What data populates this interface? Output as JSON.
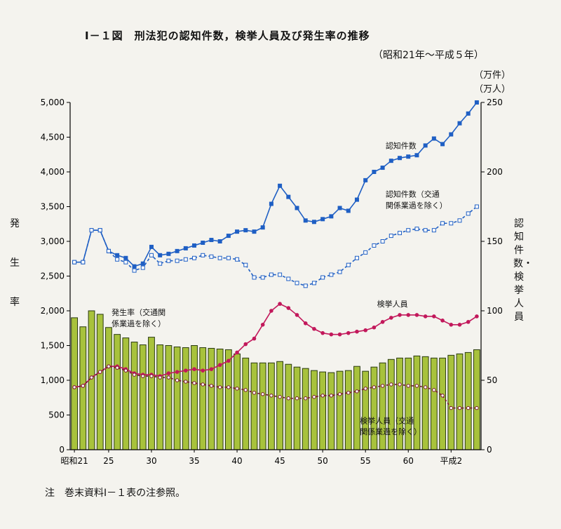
{
  "title": "Ⅰ－１図　刑法犯の認知件数，検挙人員及び発生率の推移",
  "subtitle": "（昭和21年～平成５年）",
  "note": "注　巻末資料Ⅰ－１表の注参照。",
  "left_axis_label": "発生率",
  "right_axis_label": "認知件数・検挙人員",
  "right_axis_unit_1": "（万件）",
  "right_axis_unit_2": "（万人）",
  "colors": {
    "blue": "#1f5fc4",
    "magenta": "#c2185b",
    "bar": "#a8c23c",
    "dark": "#7a1030"
  },
  "chart_data": {
    "type": "bar",
    "x": [
      21,
      22,
      23,
      24,
      25,
      26,
      27,
      28,
      29,
      30,
      31,
      32,
      33,
      34,
      35,
      36,
      37,
      38,
      39,
      40,
      41,
      42,
      43,
      44,
      45,
      46,
      47,
      48,
      49,
      50,
      51,
      52,
      53,
      54,
      55,
      56,
      57,
      58,
      59,
      60,
      61,
      62,
      63,
      64,
      65,
      66,
      67,
      68
    ],
    "x_tick_labels": [
      {
        "x": 21,
        "label": "昭和21"
      },
      {
        "x": 25,
        "label": "25"
      },
      {
        "x": 30,
        "label": "30"
      },
      {
        "x": 35,
        "label": "35"
      },
      {
        "x": 40,
        "label": "40"
      },
      {
        "x": 45,
        "label": "45"
      },
      {
        "x": 50,
        "label": "50"
      },
      {
        "x": 55,
        "label": "55"
      },
      {
        "x": 60,
        "label": "60"
      },
      {
        "x": 65,
        "label": "平成2"
      }
    ],
    "left_axis": {
      "ylim": [
        0,
        5000
      ],
      "ticks": [
        "0",
        "500",
        "1,000",
        "1,500",
        "2,000",
        "2,500",
        "3,000",
        "3,500",
        "4,000",
        "4,500",
        "5,000"
      ]
    },
    "right_axis": {
      "ylim": [
        0,
        250
      ],
      "ticks": [
        "0",
        "50",
        "100",
        "150",
        "200",
        "250"
      ]
    },
    "series": [
      {
        "name": "発生率（交通関係業過を除く）",
        "type": "bar",
        "axis": "left",
        "values": [
          1900,
          1770,
          2000,
          1950,
          1760,
          1660,
          1610,
          1550,
          1510,
          1620,
          1510,
          1500,
          1480,
          1470,
          1500,
          1470,
          1460,
          1450,
          1440,
          1380,
          1320,
          1250,
          1250,
          1250,
          1270,
          1230,
          1190,
          1170,
          1140,
          1120,
          1110,
          1130,
          1140,
          1200,
          1130,
          1190,
          1250,
          1300,
          1320,
          1320,
          1350,
          1340,
          1320,
          1320,
          1360,
          1380,
          1400,
          1440
        ]
      },
      {
        "name": "認知件数",
        "type": "line",
        "axis": "right",
        "marker": "filled-square",
        "values": [
          135,
          135,
          158,
          158,
          143,
          140,
          138,
          132,
          134,
          146,
          140,
          141,
          143,
          145,
          147,
          149,
          151,
          150,
          154,
          157,
          158,
          157,
          160,
          177,
          190,
          182,
          174,
          165,
          164,
          166,
          168,
          174,
          172,
          180,
          194,
          200,
          203,
          208,
          210,
          211,
          212,
          219,
          224,
          220,
          227,
          235,
          242,
          250
        ]
      },
      {
        "name": "認知件数（交通関係業過を除く）",
        "type": "line",
        "axis": "right",
        "marker": "hollow-square",
        "values": [
          135,
          135,
          158,
          158,
          143,
          137,
          135,
          129,
          131,
          140,
          134,
          136,
          136,
          137,
          138,
          140,
          139,
          138,
          138,
          137,
          133,
          124,
          124,
          126,
          126,
          123,
          120,
          118,
          120,
          124,
          126,
          128,
          133,
          138,
          142,
          147,
          150,
          154,
          156,
          158,
          159,
          158,
          158,
          163,
          163,
          165,
          170,
          175
        ]
      },
      {
        "name": "検挙人員",
        "type": "line",
        "axis": "right",
        "marker": "filled-circle",
        "values": [
          45,
          46,
          52,
          56,
          60,
          60,
          58,
          55,
          54,
          54,
          53,
          55,
          56,
          57,
          58,
          57,
          58,
          61,
          64,
          70,
          76,
          80,
          90,
          100,
          105,
          102,
          97,
          91,
          87,
          84,
          83,
          83,
          84,
          85,
          86,
          88,
          92,
          95,
          97,
          97,
          97,
          96,
          96,
          93,
          90,
          90,
          92,
          96
        ]
      },
      {
        "name": "検挙人員（交通関係業過を除く）",
        "type": "line",
        "axis": "right",
        "marker": "hollow-circle",
        "values": [
          45,
          46,
          52,
          56,
          60,
          59,
          57,
          54,
          53,
          53,
          52,
          52,
          50,
          49,
          48,
          47,
          46,
          45,
          45,
          44,
          43,
          41,
          40,
          39,
          38,
          37,
          37,
          37,
          38,
          39,
          39,
          40,
          41,
          42,
          44,
          45,
          46,
          47,
          47,
          46,
          46,
          45,
          43,
          39,
          30,
          30,
          30,
          30
        ]
      }
    ],
    "annotations": [
      {
        "text": "認知件数",
        "x": 58,
        "y_right": 217,
        "axis": "right"
      },
      {
        "text": "認知件数（交通",
        "x": 58,
        "y_right": 182,
        "axis": "right"
      },
      {
        "text": "関係業過を除く）",
        "x": 58,
        "y_right": 174,
        "axis": "right"
      },
      {
        "text": "検挙人員",
        "x": 57,
        "y_right": 103,
        "axis": "right"
      },
      {
        "text": "発生率（交通関",
        "x": 26,
        "y_right": 97,
        "axis": "right"
      },
      {
        "text": "係業過を除く）",
        "x": 26,
        "y_right": 89,
        "axis": "right"
      },
      {
        "text": "検挙人員（交通",
        "x": 55,
        "y_right": 19,
        "axis": "right"
      },
      {
        "text": "関係業過を除く）",
        "x": 55,
        "y_right": 11,
        "axis": "right"
      }
    ]
  }
}
